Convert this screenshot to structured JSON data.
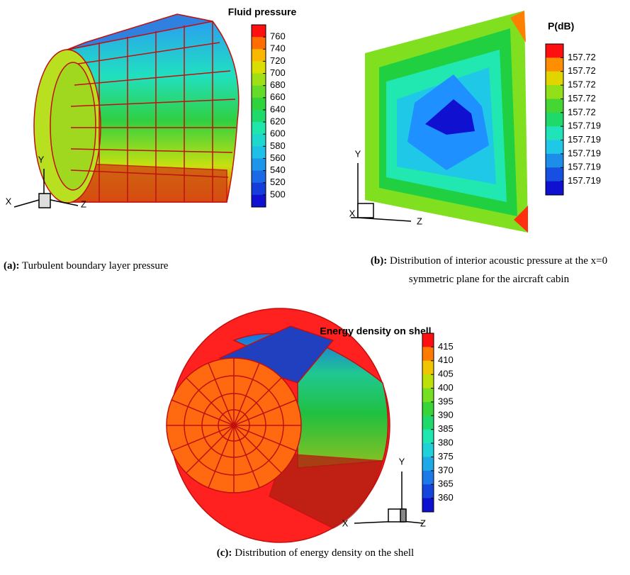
{
  "panels": [
    {
      "legend": {
        "title": "Fluid pressure",
        "labels": [
          760,
          740,
          720,
          700,
          680,
          660,
          640,
          620,
          600,
          580,
          560,
          540,
          520,
          500
        ]
      },
      "axes": {
        "x": "X",
        "y": "Y",
        "z": "Z"
      },
      "caption": {
        "label": "(a):",
        "text": "Turbulent boundary layer pressure"
      }
    },
    {
      "legend": {
        "title": "P(dB)",
        "labels": [
          "157.72",
          "157.72",
          "157.72",
          "157.72",
          "157.72",
          "157.719",
          "157.719",
          "157.719",
          "157.719",
          "157.719"
        ]
      },
      "axes": {
        "x": "X",
        "y": "Y",
        "z": "Z"
      },
      "caption": {
        "label": "(b):",
        "text": "Distribution of interior acoustic pressure at the x=0 symmetric plane for the aircraft cabin"
      }
    },
    {
      "legend": {
        "title": "Energy density on shell",
        "labels": [
          415,
          410,
          405,
          400,
          395,
          390,
          385,
          380,
          375,
          370,
          365,
          360
        ]
      },
      "axes": {
        "x": "X",
        "y": "Y",
        "z": "Z"
      },
      "caption": {
        "label": "(c):",
        "text": "Distribution of energy density on the shell"
      }
    }
  ]
}
